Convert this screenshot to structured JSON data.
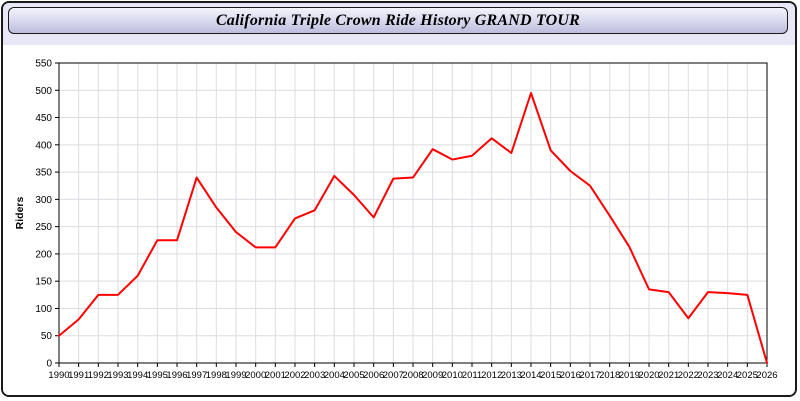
{
  "header": {
    "title": "California Triple Crown Ride History GRAND TOUR"
  },
  "colors": {
    "line": "#ff0000",
    "grid": "#dcdce2",
    "plot_border": "#000000",
    "page_background": "#e7e7f6",
    "plot_background": "#ffffff",
    "title_bar_border": "#1a1a1a"
  },
  "chart_data": {
    "type": "line",
    "title": "California Triple Crown Ride History GRAND TOUR",
    "xlabel": "",
    "ylabel": "Riders",
    "ylim": [
      0,
      550
    ],
    "ytick_step": 50,
    "grid": true,
    "legend": "none",
    "line_color": "#ff0000",
    "x": [
      1990,
      1991,
      1992,
      1993,
      1994,
      1995,
      1996,
      1997,
      1998,
      1999,
      2000,
      2001,
      2002,
      2003,
      2004,
      2005,
      2006,
      2007,
      2008,
      2009,
      2010,
      2011,
      2012,
      2013,
      2014,
      2015,
      2016,
      2017,
      2018,
      2019,
      2020,
      2021,
      2022,
      2023,
      2024,
      2025,
      2026
    ],
    "values": [
      50,
      80,
      125,
      125,
      160,
      225,
      225,
      340,
      285,
      240,
      212,
      212,
      265,
      280,
      343,
      308,
      267,
      338,
      340,
      392,
      373,
      380,
      412,
      385,
      495,
      390,
      352,
      325,
      270,
      213,
      135,
      130,
      82,
      130,
      128,
      125,
      0
    ]
  }
}
